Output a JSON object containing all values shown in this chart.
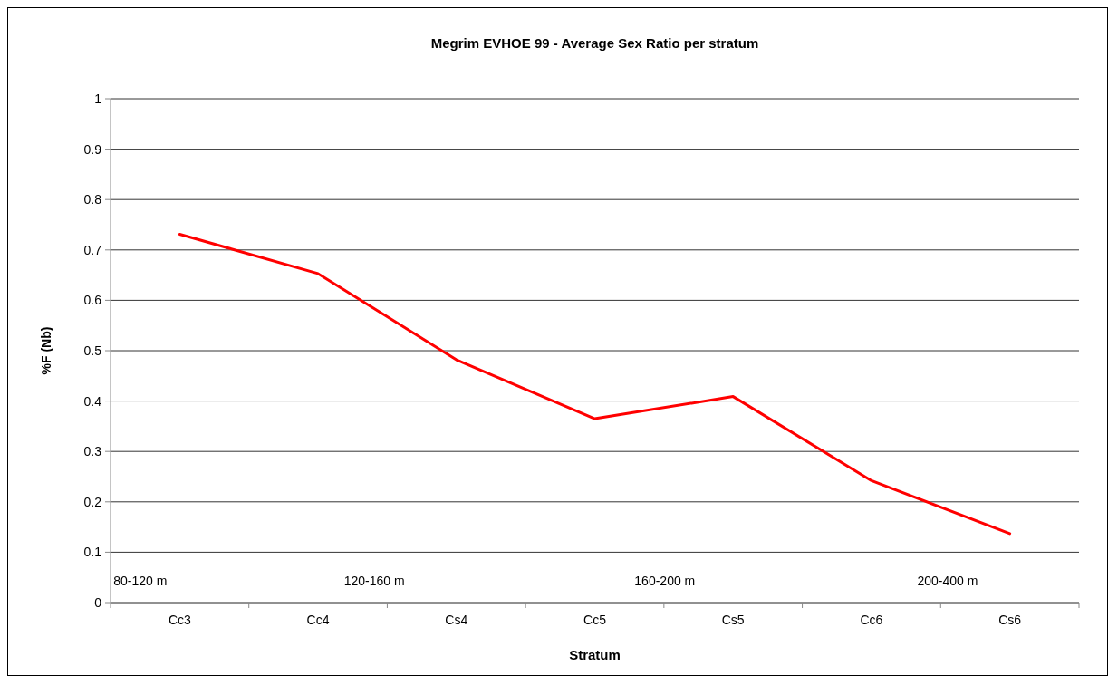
{
  "chart_data": {
    "type": "line",
    "title": "Megrim EVHOE 99 - Average Sex Ratio per stratum",
    "xlabel": "Stratum",
    "ylabel": "%F (Nb)",
    "categories": [
      "Cc3",
      "Cc4",
      "Cs4",
      "Cc5",
      "Cs5",
      "Cc6",
      "Cs6"
    ],
    "series": [
      {
        "color": "#ff0000",
        "values": [
          0.731,
          0.653,
          0.482,
          0.365,
          0.409,
          0.242,
          0.137
        ]
      }
    ],
    "ylim": [
      0,
      1
    ],
    "yticks": [
      0,
      0.1,
      0.2,
      0.3,
      0.4,
      0.5,
      0.6,
      0.7,
      0.8,
      0.9,
      1
    ],
    "grid": "y",
    "marker": "none",
    "line_style": "solid",
    "annotations": [
      "80-120 m",
      "120-160 m",
      "160-200 m",
      "200-400 m"
    ]
  }
}
